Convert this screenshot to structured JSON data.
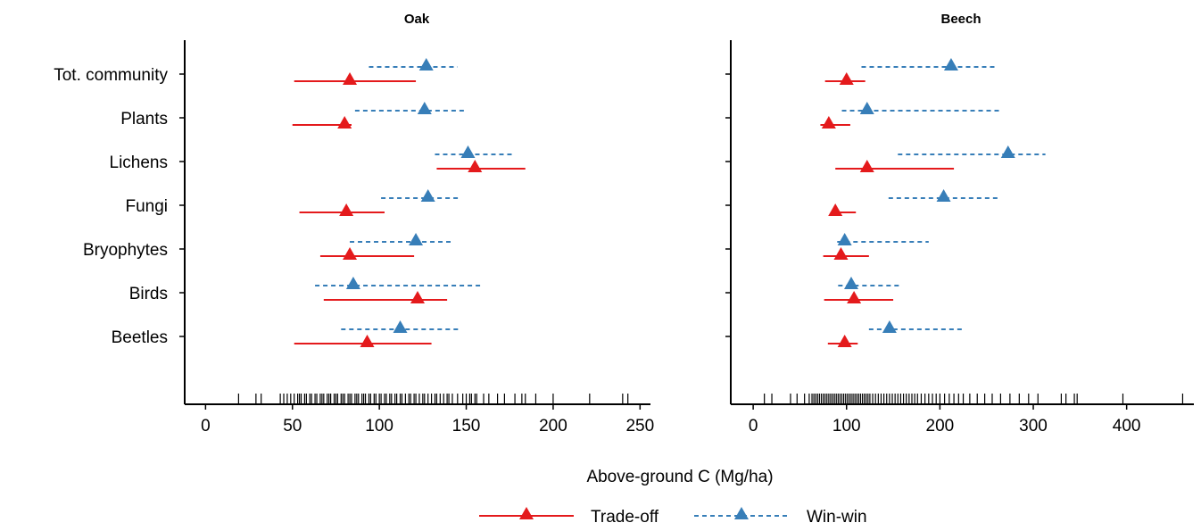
{
  "chart_data": {
    "type": "scatter",
    "xlabel": "Above-ground C (Mg/ha)",
    "categories": [
      "Tot. community",
      "Plants",
      "Lichens",
      "Fungi",
      "Bryophytes",
      "Birds",
      "Beetles"
    ],
    "legend": {
      "placement": "bottom-center",
      "entries": [
        {
          "key": "trade_off",
          "label": "Trade-off",
          "color": "#e41a1c",
          "line": "solid",
          "marker": "triangle"
        },
        {
          "key": "win_win",
          "label": "Win-win",
          "color": "#377eb8",
          "line": "dashed",
          "marker": "triangle"
        }
      ]
    },
    "panels": [
      {
        "title": "Oak",
        "xlim": [
          -12,
          256
        ],
        "xticks": [
          0,
          50,
          100,
          150,
          200,
          250
        ],
        "series": [
          {
            "key": "trade_off",
            "name": "Trade-off",
            "points": [
              {
                "category": "Tot. community",
                "value": 83,
                "low": 51,
                "high": 121
              },
              {
                "category": "Plants",
                "value": 80,
                "low": 50,
                "high": 84
              },
              {
                "category": "Lichens",
                "value": 155,
                "low": 133,
                "high": 184
              },
              {
                "category": "Fungi",
                "value": 81,
                "low": 54,
                "high": 103
              },
              {
                "category": "Bryophytes",
                "value": 83,
                "low": 66,
                "high": 120
              },
              {
                "category": "Birds",
                "value": 122,
                "low": 68,
                "high": 139
              },
              {
                "category": "Beetles",
                "value": 93,
                "low": 51,
                "high": 130
              }
            ]
          },
          {
            "key": "win_win",
            "name": "Win-win",
            "points": [
              {
                "category": "Tot. community",
                "value": 127,
                "low": 94,
                "high": 145
              },
              {
                "category": "Plants",
                "value": 126,
                "low": 86,
                "high": 150
              },
              {
                "category": "Lichens",
                "value": 151,
                "low": 132,
                "high": 177
              },
              {
                "category": "Fungi",
                "value": 128,
                "low": 101,
                "high": 147
              },
              {
                "category": "Bryophytes",
                "value": 121,
                "low": 83,
                "high": 141
              },
              {
                "category": "Birds",
                "value": 85,
                "low": 63,
                "high": 158
              },
              {
                "category": "Beetles",
                "value": 112,
                "low": 78,
                "high": 147
              }
            ]
          }
        ],
        "rug": [
          19,
          29,
          32,
          43,
          45,
          47,
          49,
          51,
          53,
          54,
          55,
          57,
          58,
          60,
          61,
          63,
          64,
          66,
          67,
          68,
          70,
          71,
          72,
          74,
          75,
          76,
          78,
          79,
          80,
          82,
          83,
          84,
          86,
          87,
          88,
          90,
          91,
          92,
          94,
          95,
          97,
          98,
          100,
          101,
          103,
          104,
          106,
          107,
          109,
          110,
          112,
          113,
          115,
          117,
          118,
          120,
          121,
          123,
          125,
          126,
          128,
          130,
          132,
          133,
          135,
          137,
          139,
          140,
          142,
          145,
          148,
          150,
          152,
          153,
          155,
          156,
          160,
          163,
          168,
          172,
          178,
          182,
          184,
          190,
          200,
          221,
          240,
          243
        ]
      },
      {
        "title": "Beech",
        "xlim": [
          -24,
          472
        ],
        "xticks": [
          0,
          100,
          200,
          300,
          400
        ],
        "series": [
          {
            "key": "trade_off",
            "name": "Trade-off",
            "points": [
              {
                "category": "Tot. community",
                "value": 100,
                "low": 77,
                "high": 120
              },
              {
                "category": "Plants",
                "value": 81,
                "low": 72,
                "high": 104
              },
              {
                "category": "Lichens",
                "value": 122,
                "low": 88,
                "high": 215
              },
              {
                "category": "Fungi",
                "value": 88,
                "low": 83,
                "high": 110
              },
              {
                "category": "Bryophytes",
                "value": 94,
                "low": 75,
                "high": 124
              },
              {
                "category": "Birds",
                "value": 108,
                "low": 76,
                "high": 150
              },
              {
                "category": "Beetles",
                "value": 98,
                "low": 80,
                "high": 112
              }
            ]
          },
          {
            "key": "win_win",
            "name": "Win-win",
            "points": [
              {
                "category": "Tot. community",
                "value": 212,
                "low": 116,
                "high": 262
              },
              {
                "category": "Plants",
                "value": 122,
                "low": 95,
                "high": 265
              },
              {
                "category": "Lichens",
                "value": 273,
                "low": 155,
                "high": 313
              },
              {
                "category": "Fungi",
                "value": 204,
                "low": 145,
                "high": 265
              },
              {
                "category": "Bryophytes",
                "value": 98,
                "low": 90,
                "high": 188
              },
              {
                "category": "Birds",
                "value": 105,
                "low": 91,
                "high": 157
              },
              {
                "category": "Beetles",
                "value": 146,
                "low": 124,
                "high": 225
              }
            ]
          }
        ],
        "rug": [
          12,
          20,
          40,
          47,
          55,
          60,
          63,
          65,
          67,
          69,
          71,
          73,
          75,
          77,
          79,
          81,
          83,
          85,
          87,
          89,
          91,
          93,
          95,
          97,
          99,
          101,
          103,
          105,
          107,
          109,
          111,
          113,
          115,
          117,
          119,
          121,
          123,
          125,
          128,
          131,
          134,
          137,
          140,
          143,
          146,
          149,
          152,
          155,
          158,
          161,
          164,
          167,
          170,
          173,
          176,
          180,
          184,
          188,
          192,
          196,
          200,
          205,
          210,
          215,
          220,
          225,
          232,
          240,
          248,
          256,
          265,
          275,
          285,
          295,
          305,
          330,
          335,
          344,
          347,
          396,
          460
        ]
      }
    ]
  }
}
